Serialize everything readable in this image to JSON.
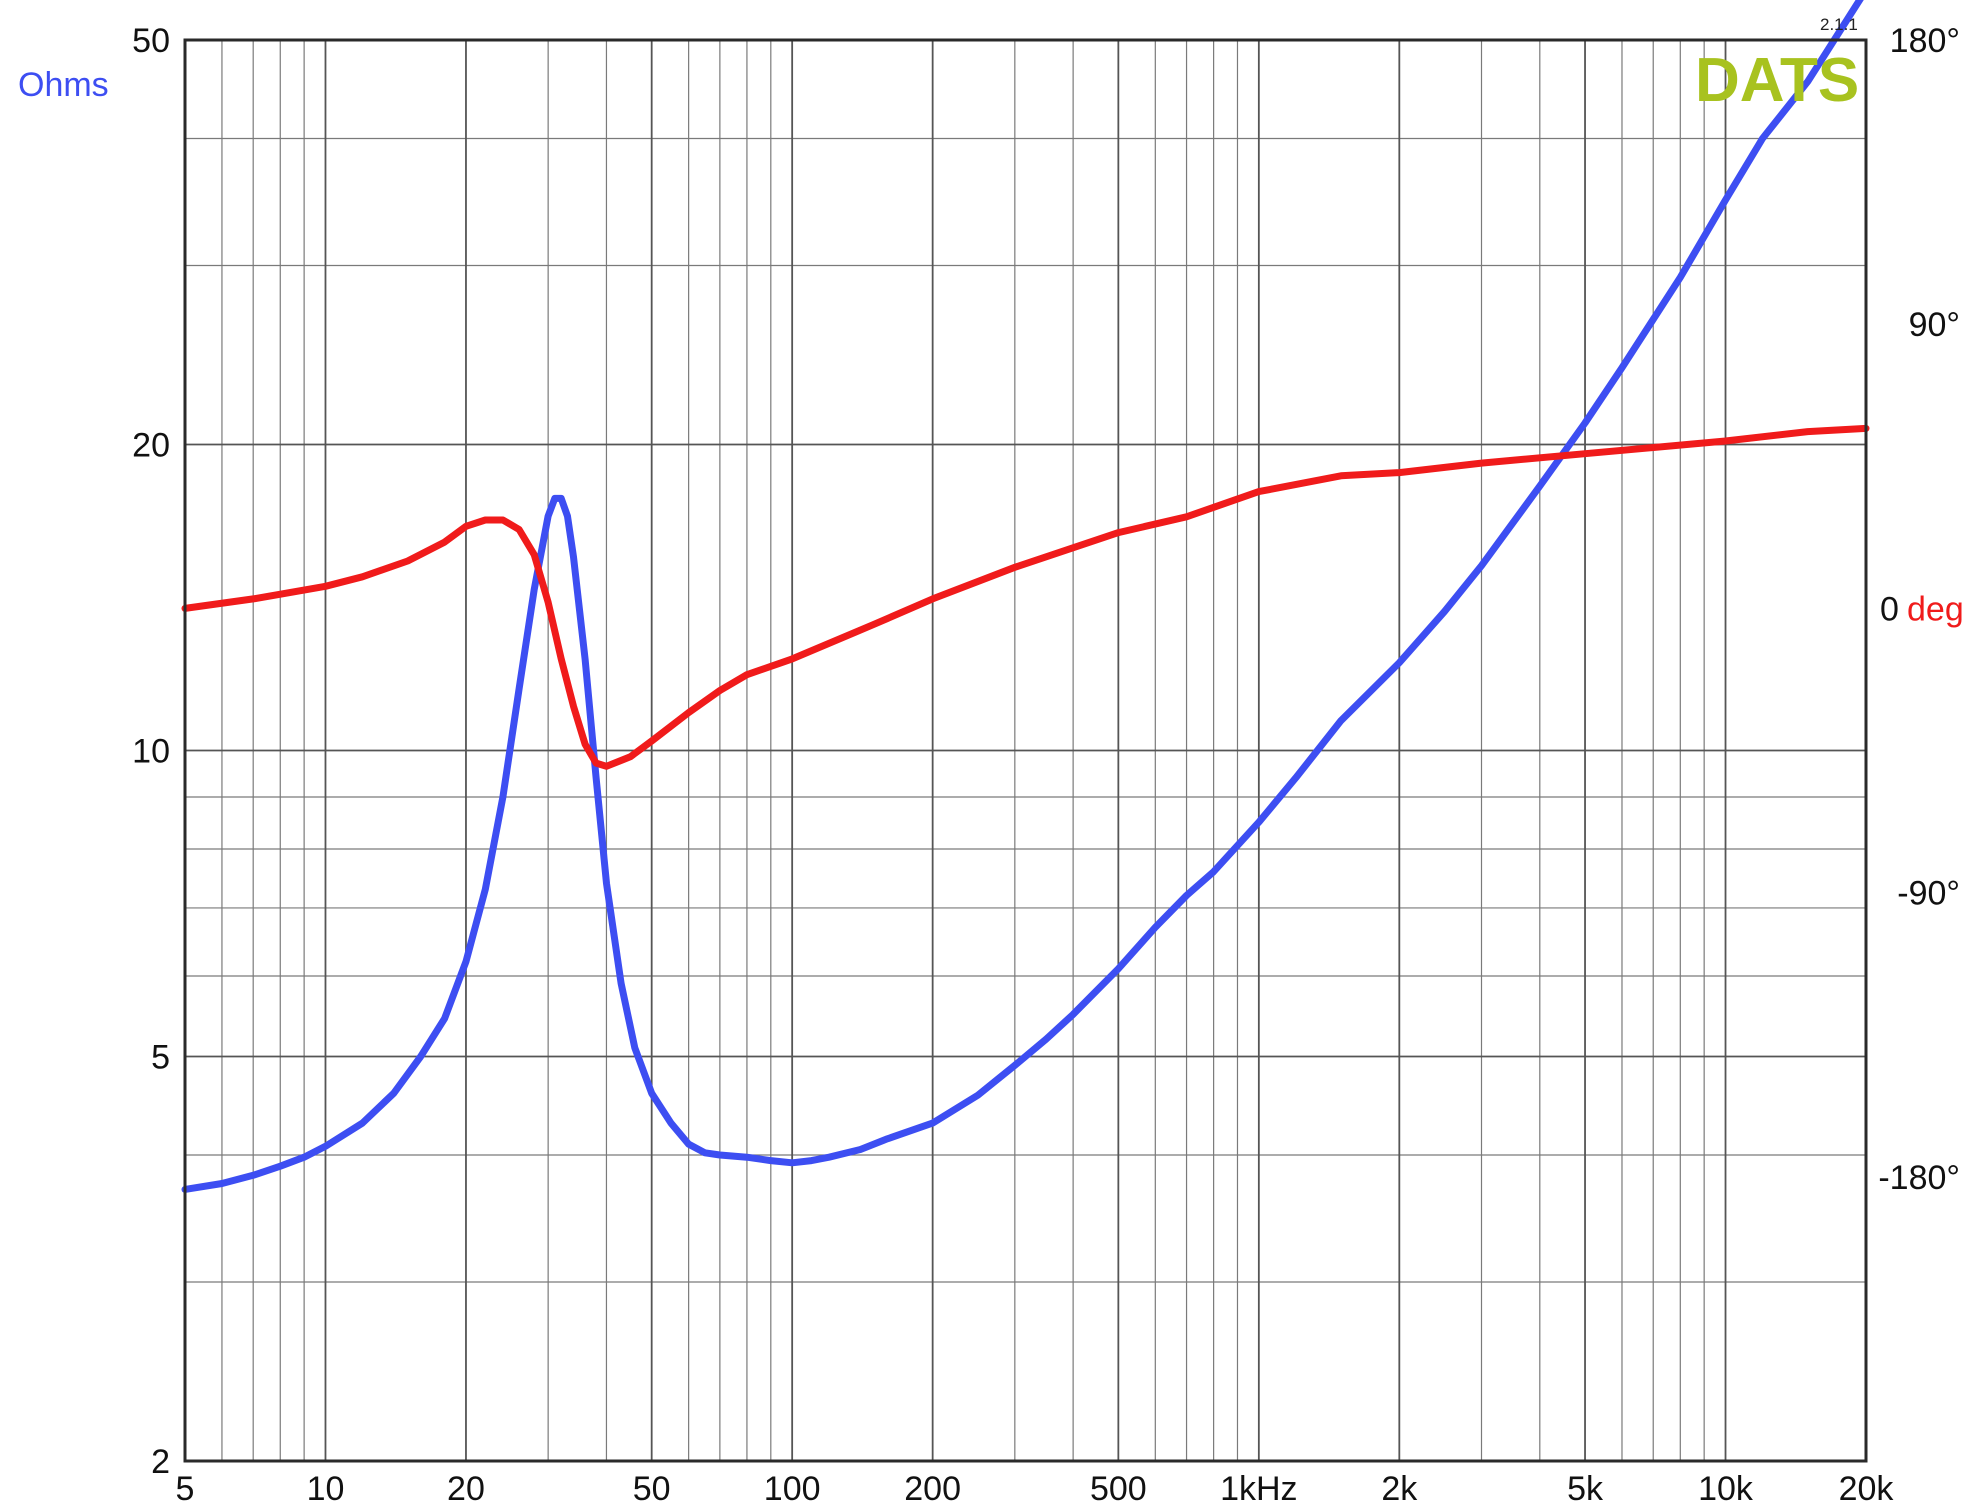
{
  "chart_data": {
    "type": "line",
    "title": "",
    "xlabel": "",
    "ylabel": "Ohms",
    "ylabel_right_number": "0",
    "ylabel_right_unit": "deg",
    "x_scale": "log",
    "y_scale": "log",
    "xlim": [
      5,
      20000
    ],
    "ylim": [
      2,
      50
    ],
    "ylim_right": [
      -270,
      180
    ],
    "grid": true,
    "x_ticks": [
      5,
      10,
      20,
      50,
      100,
      200,
      500,
      1000,
      2000,
      5000,
      10000,
      20000
    ],
    "x_tick_labels": [
      "5",
      "10",
      "20",
      "50",
      "100",
      "200",
      "500",
      "1kHz",
      "2k",
      "5k",
      "10k",
      "20k"
    ],
    "y_ticks": [
      2,
      5,
      10,
      20,
      50
    ],
    "y_tick_labels": [
      "2",
      "5",
      "10",
      "20",
      "50"
    ],
    "y_right_ticks": [
      180,
      90,
      -90,
      -180
    ],
    "y_right_tick_labels": [
      "180°",
      "90°",
      "-90°",
      "-180°"
    ],
    "logo_text": "DATS",
    "version_text": "2.1.1",
    "series": [
      {
        "key": "impedance",
        "axis": "left",
        "color": "#3d4ef2",
        "x": [
          5,
          6,
          7,
          8,
          9,
          10,
          12,
          14,
          16,
          18,
          20,
          22,
          24,
          26,
          28,
          30,
          31,
          32,
          33,
          34,
          36,
          38,
          40,
          43,
          46,
          50,
          55,
          60,
          65,
          70,
          80,
          90,
          100,
          110,
          120,
          140,
          160,
          200,
          250,
          300,
          350,
          400,
          500,
          600,
          700,
          800,
          1000,
          1200,
          1500,
          2000,
          2500,
          3000,
          4000,
          5000,
          6000,
          8000,
          10000,
          12000,
          15000,
          20000
        ],
        "y": [
          3.7,
          3.75,
          3.82,
          3.9,
          3.98,
          4.08,
          4.3,
          4.6,
          5.0,
          5.45,
          6.2,
          7.3,
          9.0,
          11.5,
          14.4,
          17.0,
          17.7,
          17.7,
          17.0,
          15.5,
          12.3,
          9.4,
          7.4,
          5.9,
          5.1,
          4.6,
          4.3,
          4.1,
          4.02,
          4.0,
          3.98,
          3.95,
          3.93,
          3.95,
          3.98,
          4.05,
          4.15,
          4.3,
          4.58,
          4.9,
          5.2,
          5.5,
          6.1,
          6.7,
          7.2,
          7.6,
          8.5,
          9.4,
          10.7,
          12.2,
          13.7,
          15.2,
          18.2,
          21.0,
          23.8,
          29.2,
          34.8,
          40.0,
          45.5,
          56.0
        ]
      },
      {
        "key": "phase",
        "axis": "right",
        "color": "#f01b1b",
        "x": [
          5,
          7,
          10,
          12,
          15,
          18,
          20,
          22,
          24,
          26,
          28,
          30,
          32,
          34,
          36,
          38,
          40,
          45,
          50,
          60,
          70,
          80,
          100,
          150,
          200,
          300,
          500,
          700,
          1000,
          1500,
          2000,
          3000,
          5000,
          10000,
          15000,
          20000
        ],
        "y": [
          0,
          3,
          7,
          10,
          15,
          21,
          26,
          28,
          28,
          25,
          17,
          2,
          -16,
          -31,
          -43,
          -49,
          -50,
          -47,
          -42,
          -33,
          -26,
          -21,
          -16,
          -5,
          3,
          13,
          24,
          29,
          37,
          42,
          43,
          46,
          49,
          53,
          56,
          57
        ]
      }
    ]
  }
}
